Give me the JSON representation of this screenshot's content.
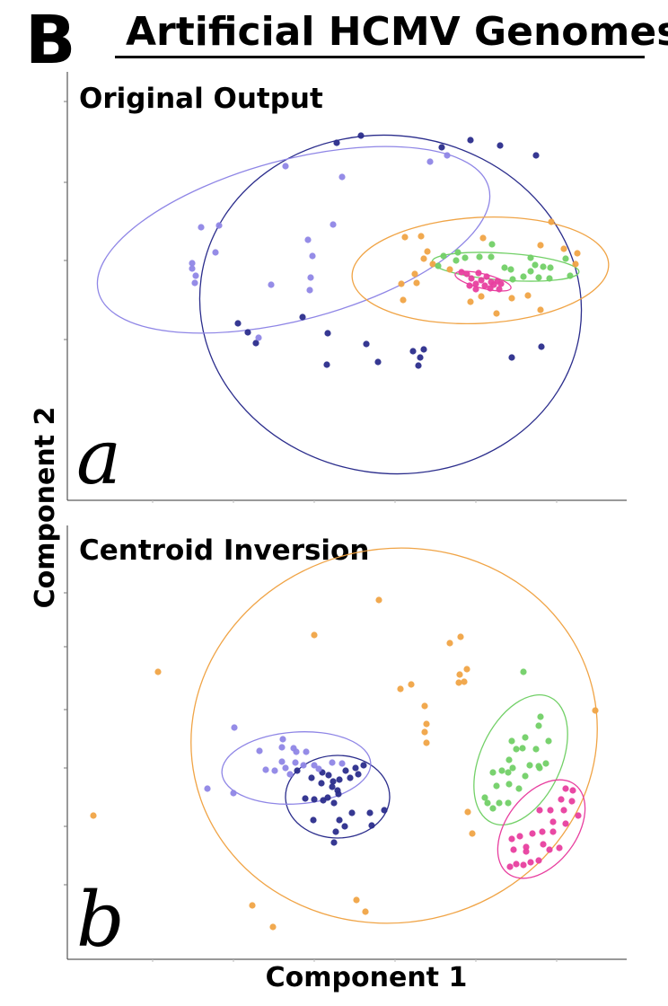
{
  "figure": {
    "panel_letter": "B",
    "title": "Artificial HCMV Genomes",
    "xlabel": "Component 1",
    "ylabel": "Component 2"
  },
  "colors": {
    "dark_blue": "#2b2d8c",
    "light_purple": "#8f86e6",
    "orange": "#f0a446",
    "green": "#72d067",
    "pink": "#e83f9f"
  },
  "chart_data": [
    {
      "type": "scatter",
      "subtitle": "Original Output",
      "tag": "a",
      "xlim": [
        75,
        698
      ],
      "ylim": [
        557,
        80
      ],
      "grid": false,
      "legend": "none",
      "series": [
        {
          "color": "dark_blue",
          "points": [
            [
              375,
              159
            ],
            [
              402,
              151
            ],
            [
              492,
              164
            ],
            [
              524,
              156
            ],
            [
              557,
              162
            ],
            [
              597,
              173
            ],
            [
              265,
              360
            ],
            [
              276,
              370
            ],
            [
              285,
              382
            ],
            [
              337,
              353
            ],
            [
              365,
              371
            ],
            [
              364,
              406
            ],
            [
              408,
              383
            ],
            [
              421,
              403
            ],
            [
              460,
              391
            ],
            [
              472,
              389
            ],
            [
              468,
              398
            ],
            [
              466,
              407
            ],
            [
              570,
              398
            ],
            [
              603,
              386
            ]
          ],
          "ellipse": {
            "cx": 435,
            "cy": 339,
            "rx": 213,
            "ry": 188,
            "rotate": 8
          }
        },
        {
          "color": "light_purple",
          "points": [
            [
              318,
              185
            ],
            [
              381,
              197
            ],
            [
              479,
              180
            ],
            [
              498,
              173
            ],
            [
              224,
              253
            ],
            [
              244,
              251
            ],
            [
              371,
              250
            ],
            [
              343,
              267
            ],
            [
              214,
              293
            ],
            [
              214,
              299
            ],
            [
              218,
              307
            ],
            [
              217,
              315
            ],
            [
              240,
              281
            ],
            [
              348,
              285
            ],
            [
              302,
              317
            ],
            [
              346,
              309
            ],
            [
              345,
              323
            ],
            [
              288,
              376
            ]
          ],
          "ellipse": {
            "cx": 327,
            "cy": 267,
            "rx": 225,
            "ry": 89,
            "rotate": -15
          }
        },
        {
          "color": "orange",
          "points": [
            [
              614,
              247
            ],
            [
              602,
              273
            ],
            [
              628,
              277
            ],
            [
              643,
              282
            ],
            [
              641,
              294
            ],
            [
              538,
              265
            ],
            [
              469,
              263
            ],
            [
              451,
              264
            ],
            [
              476,
              280
            ],
            [
              472,
              288
            ],
            [
              482,
              294
            ],
            [
              464,
              315
            ],
            [
              462,
              305
            ],
            [
              501,
              300
            ],
            [
              588,
              329
            ],
            [
              570,
              332
            ],
            [
              536,
              330
            ],
            [
              524,
              336
            ],
            [
              553,
              349
            ],
            [
              602,
              345
            ],
            [
              449,
              334
            ],
            [
              447,
              316
            ]
          ],
          "ellipse": {
            "cx": 535,
            "cy": 301,
            "rx": 143,
            "ry": 59,
            "rotate": -3
          }
        },
        {
          "color": "green",
          "points": [
            [
              494,
              285
            ],
            [
              510,
              281
            ],
            [
              508,
              290
            ],
            [
              518,
              287
            ],
            [
              548,
              272
            ],
            [
              534,
              286
            ],
            [
              547,
              286
            ],
            [
              562,
              298
            ],
            [
              569,
              300
            ],
            [
              591,
              287
            ],
            [
              596,
              295
            ],
            [
              591,
              302
            ],
            [
              605,
              297
            ],
            [
              613,
              298
            ],
            [
              600,
              309
            ],
            [
              612,
              310
            ],
            [
              583,
              308
            ],
            [
              571,
              311
            ],
            [
              630,
              288
            ],
            [
              635,
              307
            ],
            [
              488,
              296
            ]
          ],
          "ellipse": {
            "cx": 563,
            "cy": 297,
            "rx": 82,
            "ry": 15,
            "rotate": 4
          }
        },
        {
          "color": "pink",
          "points": [
            [
              514,
              303
            ],
            [
              520,
              305
            ],
            [
              525,
              310
            ],
            [
              530,
              316
            ],
            [
              536,
              312
            ],
            [
              542,
              308
            ],
            [
              547,
              314
            ],
            [
              554,
              313
            ],
            [
              546,
              321
            ],
            [
              556,
              322
            ],
            [
              523,
              318
            ],
            [
              533,
              304
            ],
            [
              540,
              318
            ],
            [
              550,
              317
            ],
            [
              558,
              316
            ],
            [
              530,
              322
            ]
          ],
          "ellipse": {
            "cx": 538,
            "cy": 313,
            "rx": 32,
            "ry": 8,
            "rotate": 14
          }
        }
      ]
    },
    {
      "type": "scatter",
      "subtitle": "Centroid Inversion",
      "tag": "b",
      "xlim": [
        75,
        698
      ],
      "ylim": [
        1068,
        585
      ],
      "grid": false,
      "legend": "none",
      "series": [
        {
          "color": "dark_blue",
          "points": [
            [
              331,
              858
            ],
            [
              347,
              866
            ],
            [
              359,
              860
            ],
            [
              366,
              863
            ],
            [
              371,
              870
            ],
            [
              378,
              868
            ],
            [
              385,
              858
            ],
            [
              390,
              866
            ],
            [
              396,
              855
            ],
            [
              405,
              852
            ],
            [
              399,
              862
            ],
            [
              358,
              872
            ],
            [
              370,
              876
            ],
            [
              376,
              880
            ],
            [
              340,
              889
            ],
            [
              350,
              890
            ],
            [
              360,
              891
            ],
            [
              365,
              888
            ],
            [
              372,
              894
            ],
            [
              377,
              884
            ],
            [
              392,
              905
            ],
            [
              378,
              913
            ],
            [
              384,
              920
            ],
            [
              374,
              926
            ],
            [
              372,
              938
            ],
            [
              412,
              905
            ],
            [
              428,
              902
            ],
            [
              414,
              919
            ],
            [
              349,
              913
            ]
          ],
          "ellipse": {
            "cx": 376,
            "cy": 887,
            "rx": 58,
            "ry": 46,
            "rotate": 0
          }
        },
        {
          "color": "light_purple",
          "points": [
            [
              261,
              810
            ],
            [
              289,
              836
            ],
            [
              315,
              823
            ],
            [
              314,
              832
            ],
            [
              327,
              833
            ],
            [
              330,
              837
            ],
            [
              341,
              837
            ],
            [
              314,
              848
            ],
            [
              329,
              849
            ],
            [
              338,
              852
            ],
            [
              296,
              857
            ],
            [
              306,
              858
            ],
            [
              318,
              855
            ],
            [
              323,
              862
            ],
            [
              350,
              852
            ],
            [
              355,
              856
            ],
            [
              370,
              849
            ],
            [
              381,
              850
            ],
            [
              260,
              883
            ],
            [
              231,
              878
            ]
          ],
          "ellipse": {
            "cx": 330,
            "cy": 855,
            "rx": 83,
            "ry": 40,
            "rotate": -4
          }
        },
        {
          "color": "orange",
          "points": [
            [
              422,
              668
            ],
            [
              350,
              707
            ],
            [
              513,
              709
            ],
            [
              501,
              716
            ],
            [
              520,
              745
            ],
            [
              512,
              751
            ],
            [
              176,
              748
            ],
            [
              446,
              767
            ],
            [
              458,
              762
            ],
            [
              511,
              760
            ],
            [
              517,
              759
            ],
            [
              473,
              786
            ],
            [
              475,
              806
            ],
            [
              473,
              815
            ],
            [
              475,
              827
            ],
            [
              104,
              908
            ],
            [
              521,
              904
            ],
            [
              526,
              928
            ],
            [
              281,
              1008
            ],
            [
              304,
              1032
            ],
            [
              397,
              1002
            ],
            [
              407,
              1015
            ],
            [
              663,
              791
            ]
          ],
          "ellipse": {
            "cx": 439,
            "cy": 819,
            "rx": 227,
            "ry": 208,
            "rotate": -12
          }
        },
        {
          "color": "green",
          "points": [
            [
              583,
              748
            ],
            [
              602,
              798
            ],
            [
              600,
              808
            ],
            [
              585,
              821
            ],
            [
              570,
              825
            ],
            [
              575,
              834
            ],
            [
              582,
              833
            ],
            [
              567,
              846
            ],
            [
              597,
              834
            ],
            [
              611,
              825
            ],
            [
              608,
              850
            ],
            [
              601,
              855
            ],
            [
              590,
              852
            ],
            [
              585,
              864
            ],
            [
              571,
              855
            ],
            [
              566,
              860
            ],
            [
              559,
              858
            ],
            [
              549,
              860
            ],
            [
              553,
              875
            ],
            [
              578,
              878
            ],
            [
              567,
              873
            ],
            [
              540,
              888
            ],
            [
              543,
              894
            ],
            [
              556,
              894
            ],
            [
              566,
              894
            ],
            [
              549,
              900
            ],
            [
              600,
              853
            ]
          ],
          "ellipse": {
            "cx": 580,
            "cy": 846,
            "rx": 45,
            "ry": 77,
            "rotate": 25
          }
        },
        {
          "color": "pink",
          "points": [
            [
              630,
              878
            ],
            [
              638,
              880
            ],
            [
              625,
              890
            ],
            [
              637,
              892
            ],
            [
              628,
              902
            ],
            [
              644,
              908
            ],
            [
              601,
              902
            ],
            [
              613,
              902
            ],
            [
              616,
              915
            ],
            [
              630,
              917
            ],
            [
              616,
              926
            ],
            [
              604,
              926
            ],
            [
              593,
              928
            ],
            [
              605,
              940
            ],
            [
              579,
              931
            ],
            [
              570,
              934
            ],
            [
              586,
              943
            ],
            [
              575,
              962
            ],
            [
              591,
              960
            ],
            [
              572,
              946
            ],
            [
              586,
              948
            ],
            [
              600,
              958
            ],
            [
              612,
              946
            ],
            [
              623,
              944
            ],
            [
              568,
              965
            ],
            [
              583,
              963
            ]
          ],
          "ellipse": {
            "cx": 603,
            "cy": 923,
            "rx": 39,
            "ry": 62,
            "rotate": 37
          }
        }
      ]
    }
  ]
}
